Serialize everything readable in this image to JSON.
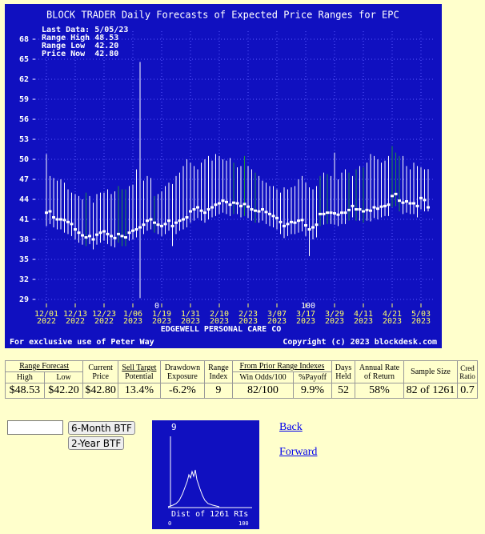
{
  "chart_data": {
    "type": "range-bar",
    "title": "BLOCK TRADER Daily Forecasts of Expected Price Ranges for  EPC",
    "info": [
      "Last Data: 5/05/23",
      "Range High 48.53",
      "Range Low  42.20",
      "Price Now  42.80"
    ],
    "company": "EDGEWELL PERSONAL CARE CO",
    "footer_left": "For exclusive use of Peter Way",
    "footer_right": "Copyright (c) 2023 blockdesk.com",
    "annotations": [
      "0",
      "100"
    ],
    "categories": [
      "12/01",
      null,
      null,
      null,
      null,
      null,
      null,
      null,
      "12/13",
      null,
      null,
      null,
      null,
      null,
      null,
      null,
      "12/23",
      null,
      null,
      null,
      null,
      null,
      null,
      null,
      "1/06",
      null,
      null,
      null,
      null,
      null,
      null,
      null,
      "1/19",
      null,
      null,
      null,
      null,
      null,
      null,
      null,
      "1/31",
      null,
      null,
      null,
      null,
      null,
      null,
      null,
      "2/10",
      null,
      null,
      null,
      null,
      null,
      null,
      null,
      "2/23",
      null,
      null,
      null,
      null,
      null,
      null,
      null,
      "3/07",
      null,
      null,
      null,
      null,
      null,
      null,
      null,
      "3/17",
      null,
      null,
      null,
      null,
      null,
      null,
      null,
      "3/29",
      null,
      null,
      null,
      null,
      null,
      null,
      null,
      "4/11",
      null,
      null,
      null,
      null,
      null,
      null,
      null,
      "4/21",
      null,
      null,
      null,
      null,
      null,
      null,
      null,
      "5/03",
      null,
      null
    ],
    "category_years": [
      "2022",
      null,
      null,
      null,
      null,
      null,
      null,
      null,
      "2022",
      null,
      null,
      null,
      null,
      null,
      null,
      null,
      "2022",
      null,
      null,
      null,
      null,
      null,
      null,
      null,
      "2023",
      null,
      null,
      null,
      null,
      null,
      null,
      null,
      "2023",
      null,
      null,
      null,
      null,
      null,
      null,
      null,
      "2023",
      null,
      null,
      null,
      null,
      null,
      null,
      null,
      "2023",
      null,
      null,
      null,
      null,
      null,
      null,
      null,
      "2023",
      null,
      null,
      null,
      null,
      null,
      null,
      null,
      "2023",
      null,
      null,
      null,
      null,
      null,
      null,
      null,
      "2023",
      null,
      null,
      null,
      null,
      null,
      null,
      null,
      "2023",
      null,
      null,
      null,
      null,
      null,
      null,
      null,
      "2023",
      null,
      null,
      null,
      null,
      null,
      null,
      null,
      "2023",
      null,
      null,
      null,
      null,
      null,
      null,
      null,
      "2023",
      null,
      null
    ],
    "series": [
      {
        "name": "Range High",
        "color": "#ffffff",
        "values": [
          50.8,
          47.5,
          47.2,
          46.8,
          47.0,
          46.5,
          45.5,
          45.0,
          44.8,
          44.5,
          44.0,
          45.0,
          44.5,
          43.5,
          44.8,
          45.0,
          45.0,
          45.5,
          44.8,
          45.2,
          46.0,
          45.5,
          45.5,
          46.0,
          46.2,
          48.5,
          64.6,
          46.8,
          47.5,
          47.2,
          44.5,
          44.8,
          45.2,
          46.0,
          46.5,
          46.3,
          47.5,
          48.0,
          49.0,
          50.0,
          49.5,
          49.0,
          48.5,
          49.5,
          50.0,
          50.5,
          49.8,
          50.8,
          50.5,
          50.0,
          49.8,
          50.2,
          49.5,
          48.8,
          49.0,
          50.5,
          49.0,
          48.5,
          48.0,
          47.5,
          46.8,
          46.5,
          46.0,
          46.0,
          45.5,
          45.0,
          45.8,
          45.5,
          45.8,
          46.0,
          47.0,
          47.5,
          46.5,
          45.8,
          45.5,
          46.0,
          47.5,
          48.0,
          47.8,
          47.5,
          51.0,
          47.0,
          48.0,
          48.5,
          48.0,
          47.5,
          48.5,
          49.0,
          48.8,
          49.5,
          50.8,
          50.5,
          50.0,
          49.5,
          49.8,
          50.5,
          52.0,
          51.0,
          50.5,
          50.5,
          49.0,
          48.5,
          49.5,
          49.0,
          48.8,
          48.5,
          48.53
        ]
      },
      {
        "name": "Range Low",
        "color": "#ffffff",
        "values": [
          40.0,
          40.3,
          39.8,
          39.5,
          39.5,
          39.0,
          38.8,
          38.5,
          38.0,
          37.5,
          37.2,
          37.0,
          37.3,
          36.5,
          37.2,
          37.5,
          37.8,
          37.3,
          37.0,
          36.8,
          37.5,
          37.0,
          37.0,
          37.8,
          38.0,
          38.3,
          29.2,
          38.8,
          39.3,
          39.5,
          39.0,
          38.8,
          38.5,
          38.8,
          39.3,
          37.0,
          38.8,
          39.3,
          39.5,
          39.8,
          40.5,
          40.8,
          41.2,
          40.8,
          40.5,
          41.0,
          41.3,
          41.5,
          41.8,
          42.0,
          41.8,
          41.5,
          41.8,
          41.8,
          41.3,
          41.5,
          41.2,
          40.8,
          40.5,
          40.5,
          40.8,
          40.3,
          40.0,
          39.8,
          39.5,
          38.8,
          38.2,
          38.5,
          38.8,
          38.8,
          39.0,
          39.2,
          38.5,
          35.5,
          38.0,
          38.3,
          40.0,
          40.2,
          40.3,
          40.3,
          40.2,
          40.0,
          40.3,
          40.3,
          40.8,
          41.3,
          40.8,
          40.8,
          40.5,
          40.8,
          40.7,
          41.2,
          41.0,
          41.3,
          41.5,
          41.5,
          42.8,
          43.0,
          42.2,
          41.8,
          42.0,
          41.8,
          41.8,
          41.3,
          42.5,
          42.2,
          42.2
        ]
      },
      {
        "name": "Price",
        "color": "#ffffff",
        "values": [
          42.0,
          42.2,
          41.3,
          41.0,
          41.0,
          40.9,
          40.6,
          40.3,
          39.5,
          39.0,
          38.6,
          38.3,
          38.5,
          38.0,
          38.7,
          39.0,
          39.2,
          38.8,
          38.5,
          38.2,
          38.8,
          38.5,
          38.3,
          39.0,
          39.3,
          39.5,
          39.8,
          40.2,
          40.8,
          41.0,
          40.5,
          40.2,
          40.0,
          40.3,
          40.8,
          40.0,
          40.5,
          40.8,
          41.0,
          41.3,
          42.2,
          42.5,
          42.8,
          42.3,
          42.0,
          42.5,
          42.8,
          43.2,
          43.4,
          43.8,
          43.6,
          43.2,
          43.5,
          43.4,
          43.0,
          43.3,
          42.9,
          42.5,
          42.3,
          42.2,
          42.5,
          42.1,
          41.8,
          41.5,
          41.2,
          40.6,
          40.0,
          40.3,
          40.6,
          40.5,
          40.8,
          40.9,
          40.1,
          39.5,
          39.8,
          40.2,
          41.8,
          41.8,
          42.0,
          42.0,
          41.9,
          41.7,
          42.0,
          42.0,
          42.4,
          43.0,
          42.5,
          42.5,
          42.2,
          42.4,
          42.3,
          42.8,
          42.6,
          42.9,
          43.0,
          43.2,
          44.5,
          44.8,
          43.8,
          43.5,
          43.7,
          43.4,
          43.4,
          43.0,
          44.2,
          43.9,
          42.8
        ]
      }
    ],
    "highlight_color": "#1f8f3f",
    "highlighted": [
      11,
      20,
      21,
      22,
      30,
      52,
      55,
      58,
      76,
      78,
      84,
      86,
      88,
      96,
      97,
      98
    ],
    "ylim": [
      29,
      68
    ],
    "yticks": [
      29,
      32,
      35,
      38,
      41,
      44,
      47,
      50,
      53,
      56,
      59,
      62,
      65,
      68
    ],
    "grid": true
  },
  "table": {
    "headers": {
      "range_forecast": "Range Forecast",
      "high": "High",
      "low": "Low",
      "current_price": "Current Price",
      "sell_target": "Sell Target",
      "potential": "Potential",
      "drawdown": "Drawdown Exposure",
      "range_index": "Range Index",
      "prior": "From Prior Range Indexes",
      "win_odds": "Win Odds/100",
      "payoff": "%Payoff",
      "days_held": "Days Held",
      "annual_rate": "Annual Rate of Return",
      "sample_size": "Sample Size",
      "cred_ratio": "Cred Ratio"
    },
    "row": [
      "$48.53",
      "$42.20",
      "$42.80",
      "13.4%",
      "-6.2%",
      "9",
      "82/100",
      "9.9%",
      "52",
      "58%",
      "82 of 1261",
      "0.7"
    ]
  },
  "buttons": [
    "6-Month BTF",
    "2-Year BTF"
  ],
  "links": [
    "Back",
    "Forward"
  ],
  "histogram": {
    "marker_label": "9",
    "caption": "Dist of 1261 RIs",
    "axis_labels": [
      "0",
      "100"
    ]
  }
}
